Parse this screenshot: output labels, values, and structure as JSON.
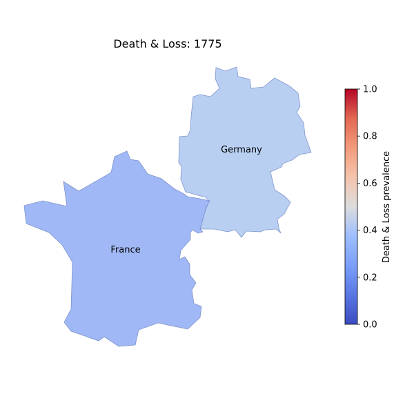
{
  "title": "Death & Loss: 1775",
  "colors": {
    "scale_low": "#3b4cc0",
    "scale_mid": "#dddddd",
    "scale_high": "#b40426",
    "outline": "#6f86c4"
  },
  "regions": [
    {
      "name": "Germany",
      "value": 0.34,
      "fill": "#b9cff2"
    },
    {
      "name": "France",
      "value": 0.25,
      "fill": "#a0b8f5"
    }
  ],
  "colorbar": {
    "label": "Death & Loss prevalence",
    "min": 0.0,
    "max": 1.0,
    "colormap": "coolwarm",
    "ticks": [
      "0.0",
      "0.2",
      "0.4",
      "0.6",
      "0.8",
      "1.0"
    ]
  }
}
